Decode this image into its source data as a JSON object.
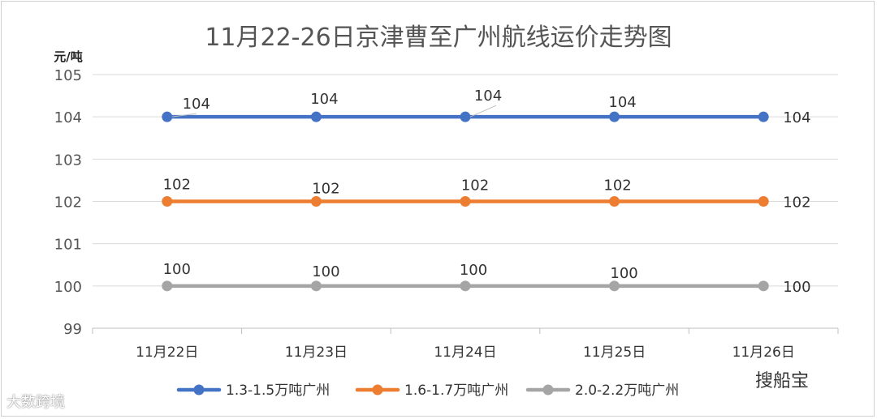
{
  "chart_data": {
    "type": "line",
    "title": "11月22-26日京津曹至广州航线运价走势图",
    "ylabel": "元/吨",
    "xlabel": "",
    "categories": [
      "11月22日",
      "11月23日",
      "11月24日",
      "11月25日",
      "11月26日"
    ],
    "ylim": [
      99,
      105
    ],
    "yticks": [
      99,
      100,
      101,
      102,
      103,
      104,
      105
    ],
    "grid": true,
    "legend_position": "bottom",
    "series": [
      {
        "name": "1.3-1.5万吨广州",
        "values": [
          104,
          104,
          104,
          104,
          104
        ],
        "color": "#4472C4"
      },
      {
        "name": "1.6-1.7万吨广州",
        "values": [
          102,
          102,
          102,
          102,
          102
        ],
        "color": "#ED7D31"
      },
      {
        "name": "2.0-2.2万吨广州",
        "values": [
          100,
          100,
          100,
          100,
          100
        ],
        "color": "#A5A5A5"
      }
    ]
  },
  "watermarks": {
    "left": "大数跨境",
    "right": "搜船宝"
  }
}
